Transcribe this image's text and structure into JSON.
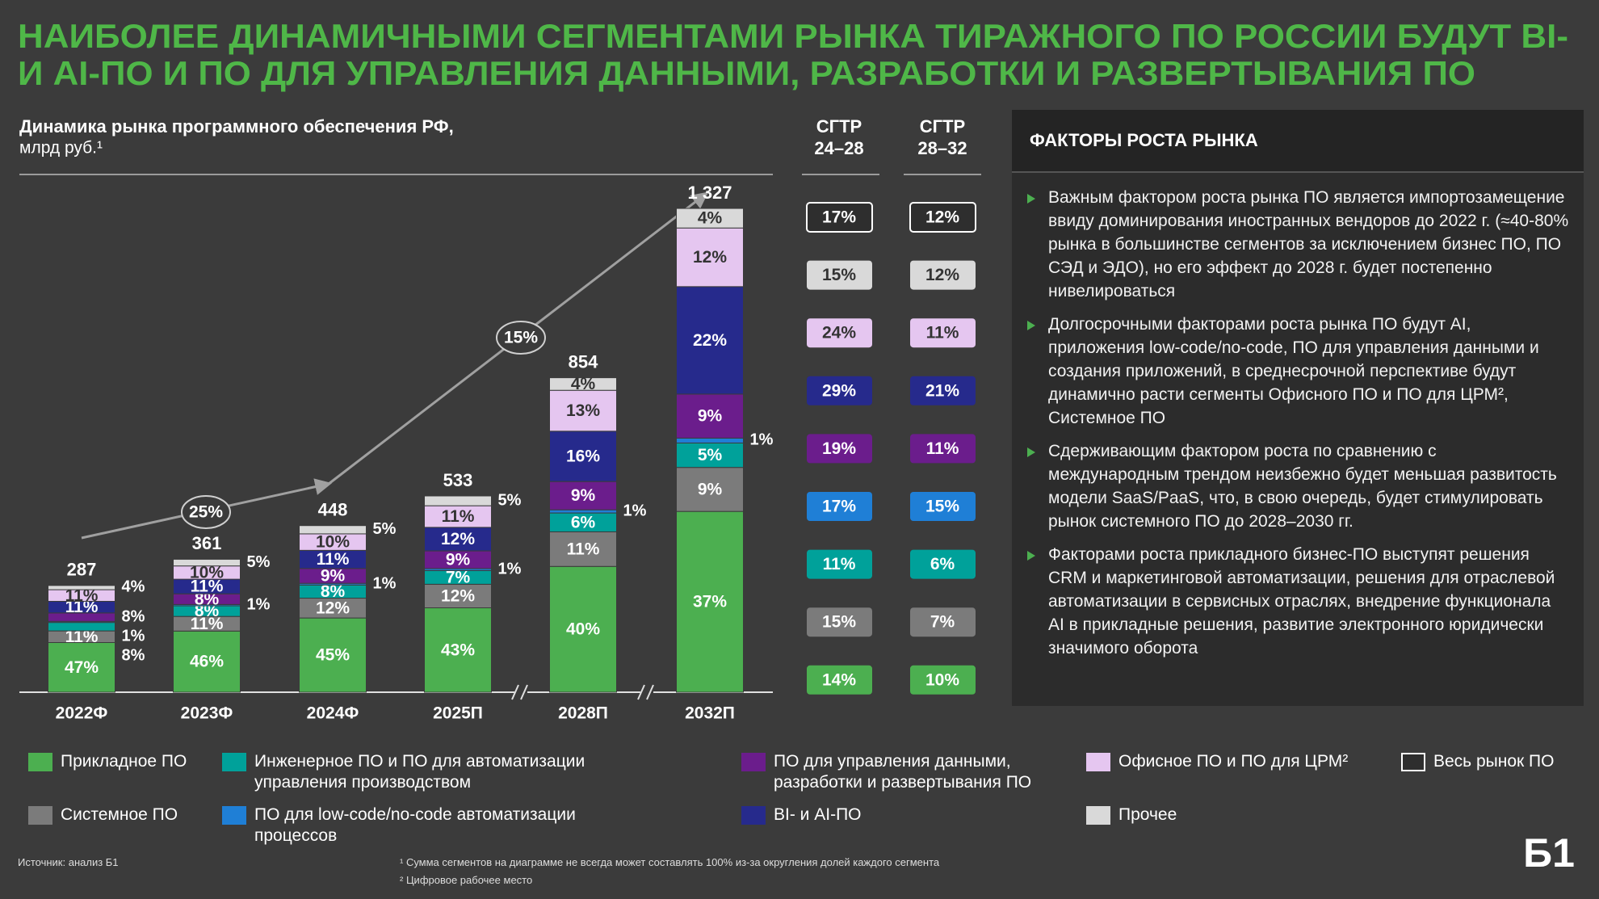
{
  "title": [
    "НАИБОЛЕЕ ДИНАМИЧНЫМИ СЕГМЕНТАМИ РЫНКА ТИРАЖНОГО ПО РОССИИ БУДУТ BI-",
    "И AI-ПО И ПО ДЛЯ УПРАВЛЕНИЯ ДАННЫМИ, РАЗРАБОТКИ И РАЗВЕРТЫВАНИЯ ПО"
  ],
  "chart_data": {
    "type": "bar",
    "stacked": true,
    "subtitle": [
      "Динамика рынка программного обеспечения РФ,",
      "млрд руб.¹"
    ],
    "categories": [
      "2022Ф",
      "2023Ф",
      "2024Ф",
      "2025П",
      "2028П",
      "2032П"
    ],
    "totals": {
      "name": "Весь рынок ПО",
      "values": [
        287,
        361,
        448,
        533,
        854,
        1327
      ],
      "value_labels": [
        "287",
        "361",
        "448",
        "533",
        "854",
        "1 327"
      ],
      "cagr": [
        17,
        12
      ],
      "cagr_labels": [
        "17%",
        "12%"
      ]
    },
    "series": [
      {
        "name": "Прикладное ПО",
        "color": "#4caf50",
        "values": [
          47,
          46,
          45,
          43,
          40,
          37
        ],
        "value_labels": [
          "47%",
          "46%",
          "45%",
          "43%",
          "40%",
          "37%"
        ],
        "cagr": [
          14,
          10
        ],
        "cagr_labels": [
          "14%",
          "10%"
        ]
      },
      {
        "name": "Системное ПО",
        "color": "#7b7b7b",
        "values": [
          11,
          11,
          12,
          12,
          11,
          9
        ],
        "value_labels": [
          "11%",
          "11%",
          "12%",
          "12%",
          "11%",
          "9%"
        ],
        "cagr": [
          15,
          7
        ],
        "cagr_labels": [
          "15%",
          "7%"
        ]
      },
      {
        "name": "Инженерное ПО и ПО для автоматизации управления производством",
        "color": "#00a19a",
        "values": [
          8,
          8,
          8,
          7,
          6,
          5
        ],
        "value_labels": [
          "8%",
          "8%",
          "8%",
          "7%",
          "6%",
          "5%"
        ],
        "cagr": [
          11,
          6
        ],
        "cagr_labels": [
          "11%",
          "6%"
        ]
      },
      {
        "name": "ПО для low-code/no-code автоматизации процессов",
        "color": "#1f7fd6",
        "values": [
          1,
          1,
          1,
          1,
          1,
          1
        ],
        "value_labels": [
          "1%",
          "1%",
          "1%",
          "1%",
          "1%",
          "1%"
        ],
        "cagr": [
          17,
          15
        ],
        "cagr_labels": [
          "17%",
          "15%"
        ]
      },
      {
        "name": "ПО для управления данными, разработки и развертывания ПО",
        "color": "#6b1d8c",
        "values": [
          8,
          8,
          9,
          9,
          9,
          9
        ],
        "value_labels": [
          "8%",
          "8%",
          "9%",
          "9%",
          "9%",
          "9%"
        ],
        "cagr": [
          19,
          11
        ],
        "cagr_labels": [
          "19%",
          "11%"
        ]
      },
      {
        "name": "BI- и AI-ПО",
        "color": "#262a8c",
        "values": [
          11,
          11,
          11,
          12,
          16,
          22
        ],
        "value_labels": [
          "11%",
          "11%",
          "11%",
          "12%",
          "16%",
          "22%"
        ],
        "cagr": [
          29,
          21
        ],
        "cagr_labels": [
          "29%",
          "21%"
        ]
      },
      {
        "name": "Офисное ПО и ПО для ЦРМ²",
        "color": "#e5c6f0",
        "values": [
          11,
          10,
          10,
          11,
          13,
          12
        ],
        "value_labels": [
          "11%",
          "10%",
          "10%",
          "11%",
          "13%",
          "12%"
        ],
        "cagr": [
          24,
          11
        ],
        "cagr_labels": [
          "24%",
          "11%"
        ]
      },
      {
        "name": "Прочее",
        "color": "#d9d9d9",
        "values": [
          4,
          5,
          5,
          5,
          4,
          4
        ],
        "value_labels": [
          "4%",
          "5%",
          "5%",
          "5%",
          "4%",
          "4%"
        ],
        "cagr": [
          15,
          12
        ],
        "cagr_labels": [
          "15%",
          "12%"
        ]
      }
    ],
    "cagr_headers": [
      "СГТР 24–28",
      "СГТР 28–32"
    ],
    "annotations": [
      {
        "value": 25,
        "label": "25%"
      },
      {
        "value": 15,
        "label": "15%"
      }
    ]
  },
  "factors": {
    "title": "ФАКТОРЫ РОСТА РЫНКА",
    "items": [
      "Важным фактором роста рынка ПО является импортозамещение ввиду доминирования иностранных вендоров до 2022 г. (≈40-80% рынка в большинстве сегментов за исключением бизнес ПО, ПО СЭД и ЭДО), но его эффект до 2028 г. будет постепенно нивелироваться",
      "Долгосрочными факторами роста рынка ПО будут AI, приложения low-code/no-code, ПО для управления данными и создания приложений, в среднесрочной перспективе будут динамично расти сегменты Офисного ПО и ПО для ЦРМ², Системное ПО",
      "Сдерживающим фактором роста по сравнению с международным трендом неизбежно будет меньшая развитость модели SaaS/PaaS, что, в свою очередь, будет стимулировать рынок системного ПО до 2028–2030 гг.",
      "Факторами роста прикладного бизнес-ПО выступят решения CRM и маркетинговой автоматизации, решения для отраслевой автоматизации в сервисных отраслях, внедрение функционала AI в прикладные решения, развитие электронного юридически значимого оборота"
    ]
  },
  "footer": {
    "source": "Источник: анализ Б1",
    "notes": [
      "¹ Сумма сегментов на диаграмме не всегда может составлять 100% из-за округления долей каждого сегмента",
      "² Цифровое рабочее место"
    ],
    "logo": "Б1"
  }
}
